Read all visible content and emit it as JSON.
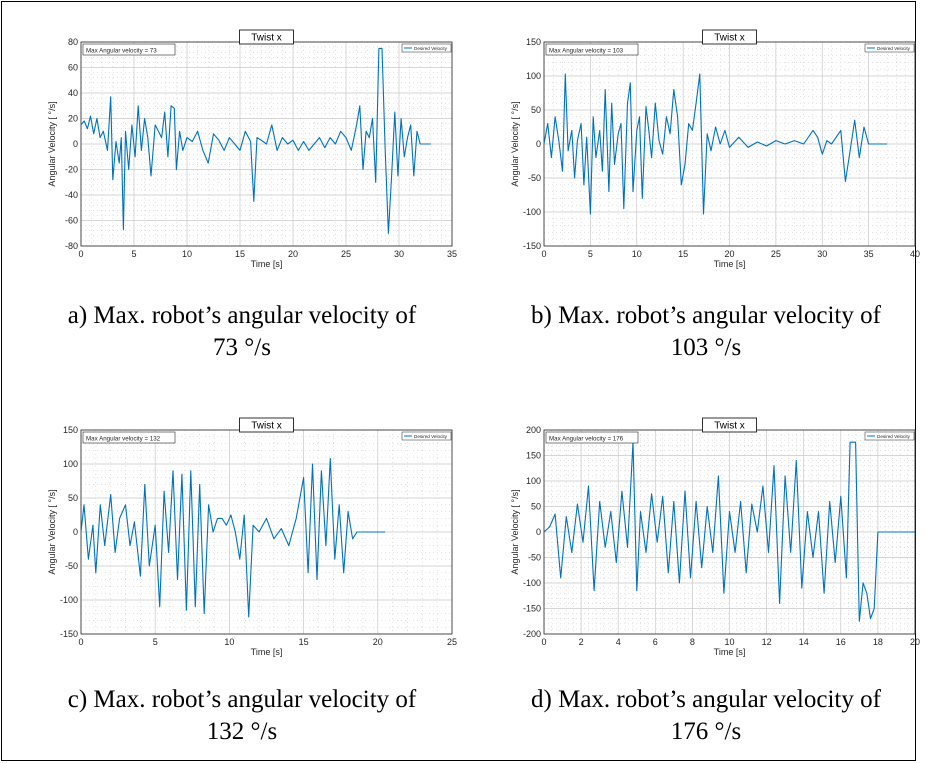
{
  "chart_data": [
    {
      "type": "line",
      "title": "Twist x",
      "annotation": "Max Angular velocity = 73",
      "xlabel": "Time [s]",
      "ylabel": "Angular Velocity [ °/s]",
      "xlim": [
        0,
        35
      ],
      "ylim": [
        -80,
        80
      ],
      "xticks": [
        0,
        5,
        10,
        15,
        20,
        25,
        30,
        35
      ],
      "yticks": [
        -80,
        -60,
        -40,
        -20,
        0,
        20,
        40,
        60,
        80
      ],
      "grid": true,
      "legend": "top-right",
      "color": "#0072BD",
      "series": [
        {
          "name": "Desired Velocity",
          "x": [
            0,
            0.3,
            0.6,
            0.9,
            1.2,
            1.5,
            1.8,
            2.1,
            2.5,
            2.8,
            3.0,
            3.3,
            3.6,
            3.8,
            4.0,
            4.2,
            4.5,
            4.8,
            5.1,
            5.4,
            5.7,
            6.0,
            6.3,
            6.6,
            7.0,
            7.3,
            7.6,
            7.9,
            8.2,
            8.5,
            8.8,
            9.0,
            9.3,
            9.6,
            10.0,
            10.5,
            11.0,
            11.5,
            12.0,
            12.5,
            13.0,
            13.5,
            14.0,
            14.5,
            15.0,
            15.5,
            16.0,
            16.3,
            16.6,
            17.0,
            17.5,
            18.0,
            18.5,
            19.0,
            19.5,
            20.0,
            20.5,
            21.0,
            21.5,
            22.0,
            22.5,
            23.0,
            23.5,
            24.0,
            24.5,
            25.0,
            25.5,
            26.0,
            26.3,
            26.6,
            26.9,
            27.2,
            27.5,
            27.8,
            28.1,
            28.4,
            28.7,
            29.0,
            29.3,
            29.6,
            29.9,
            30.2,
            30.5,
            30.8,
            31.1,
            31.4,
            31.7,
            32.0,
            32.5,
            33.0
          ],
          "y": [
            15,
            18,
            12,
            22,
            8,
            20,
            5,
            10,
            -5,
            37,
            -28,
            2,
            -15,
            5,
            -67,
            10,
            -20,
            15,
            -10,
            30,
            -5,
            20,
            5,
            -25,
            15,
            10,
            5,
            25,
            -10,
            30,
            28,
            -20,
            10,
            -5,
            5,
            2,
            10,
            -5,
            -15,
            8,
            3,
            -5,
            5,
            0,
            -5,
            10,
            2,
            -45,
            5,
            3,
            0,
            15,
            -5,
            5,
            0,
            3,
            -5,
            2,
            -5,
            0,
            5,
            -3,
            5,
            0,
            10,
            5,
            -5,
            15,
            30,
            -20,
            10,
            5,
            20,
            -30,
            75,
            75,
            -5,
            -70,
            -25,
            25,
            -25,
            20,
            -10,
            5,
            15,
            -25,
            10,
            0,
            0,
            0
          ]
        }
      ]
    },
    {
      "type": "line",
      "title": "Twist x",
      "annotation": "Max Angular velocity = 103",
      "xlabel": "Time [s]",
      "ylabel": "Angular Velocity [ °/s]",
      "xlim": [
        0,
        40
      ],
      "ylim": [
        -150,
        150
      ],
      "xticks": [
        0,
        5,
        10,
        15,
        20,
        25,
        30,
        35,
        40
      ],
      "yticks": [
        -150,
        -100,
        -50,
        0,
        50,
        100,
        150
      ],
      "grid": true,
      "legend": "top-right",
      "color": "#0072BD",
      "series": [
        {
          "name": "Desired Velocity",
          "x": [
            0,
            0.4,
            0.8,
            1.2,
            1.6,
            2.0,
            2.3,
            2.6,
            3.0,
            3.3,
            3.6,
            4.0,
            4.3,
            4.6,
            5.0,
            5.3,
            5.6,
            6.0,
            6.3,
            6.6,
            7.0,
            7.3,
            7.6,
            8.0,
            8.3,
            8.6,
            9.0,
            9.3,
            9.6,
            10.0,
            10.3,
            10.6,
            11.0,
            11.3,
            11.6,
            12.0,
            12.4,
            12.8,
            13.2,
            13.6,
            14.0,
            14.4,
            14.8,
            15.2,
            15.6,
            16.0,
            16.4,
            16.8,
            17.2,
            17.6,
            18.0,
            18.5,
            19.0,
            19.5,
            20.0,
            21.0,
            22.0,
            23.0,
            24.0,
            25.0,
            26.0,
            27.0,
            28.0,
            29.0,
            29.5,
            30.0,
            30.5,
            31.0,
            31.5,
            32.0,
            32.5,
            33.0,
            33.5,
            34.0,
            34.5,
            35.0,
            36.0,
            37.0
          ],
          "y": [
            0,
            30,
            -20,
            40,
            5,
            -40,
            103,
            -10,
            20,
            -50,
            5,
            30,
            -60,
            10,
            -103,
            40,
            -20,
            20,
            -40,
            80,
            -70,
            60,
            -30,
            15,
            30,
            -95,
            60,
            90,
            -70,
            20,
            40,
            -80,
            55,
            20,
            -20,
            60,
            5,
            -15,
            40,
            15,
            80,
            40,
            -60,
            -30,
            30,
            20,
            60,
            103,
            -103,
            15,
            -10,
            25,
            0,
            20,
            -5,
            10,
            -5,
            3,
            -3,
            5,
            0,
            5,
            0,
            20,
            10,
            -15,
            5,
            0,
            10,
            20,
            -55,
            -10,
            35,
            -20,
            25,
            0,
            0,
            0
          ]
        }
      ]
    },
    {
      "type": "line",
      "title": "Twist x",
      "annotation": "Max Angular velocity = 132",
      "xlabel": "Time [s]",
      "ylabel": "Angular Velocity [ °/s]",
      "xlim": [
        0,
        25
      ],
      "ylim": [
        -150,
        150
      ],
      "xticks": [
        0,
        5,
        10,
        15,
        20,
        25
      ],
      "yticks": [
        -150,
        -100,
        -50,
        0,
        50,
        100,
        150
      ],
      "grid": true,
      "legend": "top-right",
      "color": "#0072BD",
      "series": [
        {
          "name": "Desired Velocity",
          "x": [
            0,
            0.2,
            0.5,
            0.8,
            1.0,
            1.3,
            1.6,
            2.0,
            2.3,
            2.6,
            3.0,
            3.3,
            3.6,
            4.0,
            4.3,
            4.6,
            5.0,
            5.3,
            5.6,
            5.9,
            6.2,
            6.5,
            6.8,
            7.1,
            7.4,
            7.7,
            8.0,
            8.3,
            8.6,
            8.9,
            9.2,
            9.5,
            9.8,
            10.1,
            10.4,
            10.7,
            11.0,
            11.3,
            11.6,
            12.0,
            12.5,
            13.0,
            13.5,
            14.0,
            14.5,
            15.0,
            15.3,
            15.6,
            15.9,
            16.2,
            16.5,
            16.8,
            17.1,
            17.4,
            17.7,
            18.0,
            18.3,
            18.6,
            19.0,
            20.0,
            20.5
          ],
          "y": [
            0,
            40,
            -40,
            10,
            -60,
            40,
            -20,
            55,
            -30,
            20,
            40,
            -20,
            15,
            -65,
            70,
            -50,
            10,
            -110,
            60,
            -30,
            90,
            -70,
            85,
            -115,
            90,
            -110,
            70,
            -120,
            40,
            0,
            20,
            20,
            10,
            25,
            0,
            -40,
            25,
            -125,
            10,
            0,
            20,
            -10,
            5,
            -20,
            20,
            80,
            -60,
            100,
            -70,
            90,
            -20,
            108,
            -40,
            40,
            -60,
            30,
            -10,
            0,
            0,
            0,
            0
          ]
        }
      ]
    },
    {
      "type": "line",
      "title": "Twist x",
      "annotation": "Max Angular velocity = 176",
      "xlabel": "Time [s]",
      "ylabel": "Angular Velocity [ °/s]",
      "xlim": [
        0,
        20
      ],
      "ylim": [
        -200,
        200
      ],
      "xticks": [
        0,
        2,
        4,
        6,
        8,
        10,
        12,
        14,
        16,
        18,
        20
      ],
      "yticks": [
        -200,
        -150,
        -100,
        -50,
        0,
        50,
        100,
        150,
        200
      ],
      "grid": true,
      "legend": "top-right",
      "color": "#0072BD",
      "series": [
        {
          "name": "Desired Velocity",
          "x": [
            0,
            0.3,
            0.6,
            0.9,
            1.2,
            1.5,
            1.8,
            2.1,
            2.4,
            2.7,
            3.0,
            3.3,
            3.6,
            3.9,
            4.2,
            4.5,
            4.8,
            5.0,
            5.2,
            5.5,
            5.8,
            6.1,
            6.4,
            6.7,
            7.0,
            7.3,
            7.6,
            7.9,
            8.2,
            8.5,
            8.8,
            9.1,
            9.4,
            9.7,
            10.0,
            10.3,
            10.6,
            10.9,
            11.2,
            11.5,
            11.8,
            12.1,
            12.4,
            12.7,
            13.0,
            13.3,
            13.6,
            13.9,
            14.2,
            14.5,
            14.8,
            15.1,
            15.4,
            15.7,
            16.0,
            16.3,
            16.5,
            16.8,
            17.0,
            17.2,
            17.4,
            17.6,
            17.8,
            18.0,
            19.0,
            20.0
          ],
          "y": [
            0,
            10,
            35,
            -90,
            30,
            -40,
            55,
            -20,
            90,
            -115,
            60,
            -30,
            40,
            -60,
            80,
            -30,
            176,
            -115,
            40,
            -40,
            75,
            -20,
            70,
            -80,
            60,
            -100,
            80,
            -90,
            60,
            -70,
            50,
            -40,
            110,
            -120,
            40,
            -40,
            60,
            -80,
            55,
            0,
            90,
            -40,
            130,
            -140,
            110,
            -40,
            140,
            -110,
            40,
            -50,
            40,
            -120,
            60,
            -60,
            70,
            -90,
            176,
            176,
            -175,
            -100,
            -120,
            -170,
            -150,
            0,
            0,
            0
          ]
        }
      ]
    }
  ],
  "captions": [
    {
      "line1": "a) Max. robot’s angular velocity of",
      "line2": "73 °/s"
    },
    {
      "line1": "b) Max. robot’s angular velocity of",
      "line2": "103 °/s"
    },
    {
      "line1": "c) Max. robot’s angular velocity of",
      "line2": "132 °/s"
    },
    {
      "line1": "d) Max. robot’s angular velocity of",
      "line2": "176 °/s"
    }
  ]
}
